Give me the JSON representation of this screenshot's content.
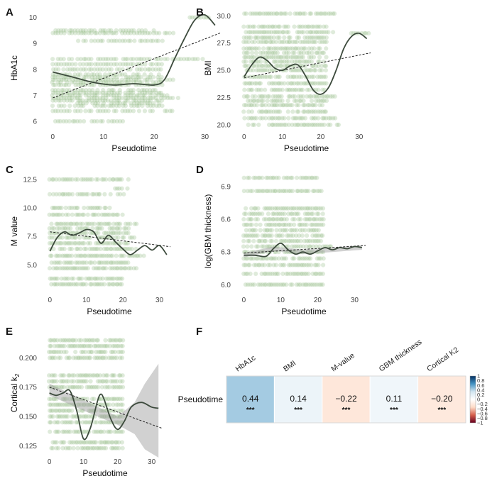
{
  "colors": {
    "point": "#8db87d",
    "smooth": "#3c4a3c",
    "linear": "#222222",
    "band": "#9a9a9a",
    "cmap": [
      "#67001f",
      "#d6604d",
      "#fddbc7",
      "#ffffff",
      "#d1e5f0",
      "#4393c3",
      "#053061"
    ]
  },
  "chart_data": [
    {
      "id": "A",
      "letter": "A",
      "type": "scatter",
      "title": "",
      "xlabel": "Pseudotime",
      "ylabel": "HbA1c",
      "xlim": [
        -2,
        33
      ],
      "ylim": [
        5.7,
        10.4
      ],
      "xticks": [
        0,
        10,
        20,
        30
      ],
      "xtick_labels": [
        "0",
        "10",
        "20",
        "30"
      ],
      "yticks": [
        6,
        7,
        8,
        9,
        10
      ],
      "ytick_labels": [
        "6",
        "7",
        "8",
        "9",
        "10"
      ],
      "point_levels": [
        [
          6.0,
          0,
          14
        ],
        [
          6.4,
          0,
          24
        ],
        [
          6.6,
          0,
          22
        ],
        [
          6.7,
          5,
          22
        ],
        [
          6.8,
          0,
          22
        ],
        [
          6.9,
          0,
          25
        ],
        [
          7.0,
          0,
          24
        ],
        [
          7.1,
          0,
          22
        ],
        [
          7.2,
          0,
          22
        ],
        [
          7.4,
          0,
          22
        ],
        [
          7.5,
          0,
          22
        ],
        [
          7.6,
          0,
          24
        ],
        [
          7.7,
          0,
          22
        ],
        [
          7.8,
          0,
          22
        ],
        [
          8.0,
          0,
          22
        ],
        [
          8.2,
          0,
          22
        ],
        [
          8.4,
          0,
          30
        ],
        [
          9.1,
          5,
          22
        ],
        [
          9.4,
          0,
          24
        ],
        [
          9.5,
          0,
          20
        ],
        [
          10.0,
          27,
          31
        ]
      ],
      "smooth": [
        [
          0,
          7.9
        ],
        [
          4,
          7.7
        ],
        [
          8,
          7.5
        ],
        [
          12,
          7.4
        ],
        [
          16,
          7.45
        ],
        [
          20,
          7.4
        ],
        [
          22,
          7.6
        ],
        [
          24,
          8.4
        ],
        [
          26,
          9.2
        ],
        [
          28,
          9.9
        ],
        [
          30,
          10.1
        ],
        [
          32,
          9.7
        ]
      ],
      "linear": [
        [
          0,
          6.9
        ],
        [
          33,
          9.4
        ]
      ],
      "band": null
    },
    {
      "id": "B",
      "letter": "B",
      "type": "scatter",
      "title": "",
      "xlabel": "Pseudotime",
      "ylabel": "BMI",
      "xlim": [
        -2,
        33
      ],
      "ylim": [
        19.6,
        30.8
      ],
      "xticks": [
        0,
        10,
        20,
        30
      ],
      "xtick_labels": [
        "0",
        "10",
        "20",
        "30"
      ],
      "yticks": [
        20.0,
        22.5,
        25.0,
        27.5,
        30.0
      ],
      "ytick_labels": [
        "20.0",
        "22.5",
        "25.0",
        "27.5",
        "30.0"
      ],
      "point_levels": [
        [
          20.0,
          0,
          25
        ],
        [
          20.6,
          0,
          24
        ],
        [
          21.2,
          0,
          22
        ],
        [
          21.8,
          0,
          22
        ],
        [
          22.2,
          0,
          22
        ],
        [
          22.6,
          0,
          24
        ],
        [
          23.2,
          0,
          22
        ],
        [
          23.8,
          0,
          22
        ],
        [
          24.4,
          0,
          22
        ],
        [
          25.0,
          0,
          22
        ],
        [
          25.4,
          0,
          22
        ],
        [
          25.8,
          0,
          22
        ],
        [
          26.2,
          0,
          22
        ],
        [
          26.6,
          0,
          22
        ],
        [
          27.0,
          0,
          22
        ],
        [
          27.6,
          0,
          22
        ],
        [
          28.0,
          0,
          22
        ],
        [
          28.5,
          0,
          24
        ],
        [
          28.4,
          28,
          33
        ],
        [
          29.0,
          0,
          22
        ],
        [
          30.2,
          0,
          24
        ]
      ],
      "smooth": [
        [
          0,
          24.4
        ],
        [
          2,
          25.5
        ],
        [
          4,
          26.2
        ],
        [
          6,
          25.9
        ],
        [
          8,
          25.2
        ],
        [
          10,
          25.0
        ],
        [
          12,
          25.4
        ],
        [
          14,
          25.5
        ],
        [
          16,
          24.5
        ],
        [
          18,
          23.2
        ],
        [
          20,
          22.8
        ],
        [
          22,
          23.4
        ],
        [
          24,
          25.0
        ],
        [
          26,
          27.0
        ],
        [
          28,
          28.1
        ],
        [
          30,
          28.4
        ],
        [
          32,
          27.9
        ]
      ],
      "linear": [
        [
          0,
          24.3
        ],
        [
          33,
          26.6
        ]
      ],
      "band": null
    },
    {
      "id": "C",
      "letter": "C",
      "type": "scatter",
      "title": "",
      "xlabel": "Pseudotime",
      "ylabel": "M value",
      "xlim": [
        -2,
        33
      ],
      "ylim": [
        2.6,
        13.3
      ],
      "xticks": [
        0,
        10,
        20,
        30
      ],
      "xtick_labels": [
        "0",
        "10",
        "20",
        "30"
      ],
      "yticks": [
        5.0,
        7.5,
        10.0,
        12.5
      ],
      "ytick_labels": [
        "5.0",
        "7.5",
        "10.0",
        "12.5"
      ],
      "point_levels": [
        [
          3.3,
          0,
          20
        ],
        [
          3.8,
          0,
          20
        ],
        [
          4.7,
          0,
          24
        ],
        [
          5.2,
          0,
          22
        ],
        [
          5.8,
          0,
          26
        ],
        [
          6.4,
          0,
          24
        ],
        [
          6.9,
          0,
          22
        ],
        [
          7.4,
          0,
          24
        ],
        [
          7.8,
          0,
          22
        ],
        [
          8.2,
          0,
          22
        ],
        [
          8.6,
          0,
          24
        ],
        [
          9.4,
          0,
          20
        ],
        [
          10.0,
          0,
          18
        ],
        [
          11.2,
          0,
          22
        ],
        [
          11.7,
          18,
          22
        ],
        [
          12.5,
          0,
          22
        ]
      ],
      "smooth": [
        [
          0,
          6.2
        ],
        [
          2,
          7.4
        ],
        [
          4,
          7.9
        ],
        [
          6,
          7.6
        ],
        [
          8,
          7.8
        ],
        [
          10,
          8.1
        ],
        [
          12,
          7.9
        ],
        [
          14,
          6.9
        ],
        [
          16,
          7.6
        ],
        [
          18,
          7.0
        ],
        [
          20,
          6.4
        ],
        [
          22,
          5.9
        ],
        [
          24,
          6.3
        ],
        [
          26,
          6.7
        ],
        [
          28,
          6.3
        ],
        [
          30,
          6.7
        ],
        [
          32,
          5.9
        ]
      ],
      "linear": [
        [
          0,
          7.9
        ],
        [
          33,
          6.6
        ]
      ],
      "band": null
    },
    {
      "id": "D",
      "letter": "D",
      "type": "scatter",
      "title": "",
      "xlabel": "Pseudotime",
      "ylabel": "log(GBM thickness)",
      "xlim": [
        -2,
        33
      ],
      "ylim": [
        5.93,
        7.05
      ],
      "xticks": [
        0,
        10,
        20,
        30
      ],
      "xtick_labels": [
        "0",
        "10",
        "20",
        "30"
      ],
      "yticks": [
        6.0,
        6.3,
        6.6,
        6.9
      ],
      "ytick_labels": [
        "6.0",
        "6.3",
        "6.6",
        "6.9"
      ],
      "point_levels": [
        [
          6.0,
          0,
          22
        ],
        [
          6.1,
          0,
          22
        ],
        [
          6.18,
          0,
          22
        ],
        [
          6.24,
          0,
          22
        ],
        [
          6.3,
          0,
          22
        ],
        [
          6.35,
          0,
          24
        ],
        [
          6.4,
          0,
          22
        ],
        [
          6.45,
          0,
          22
        ],
        [
          6.5,
          0,
          22
        ],
        [
          6.55,
          0,
          22
        ],
        [
          6.6,
          0,
          22
        ],
        [
          6.65,
          0,
          22
        ],
        [
          6.7,
          0,
          22
        ],
        [
          6.86,
          0,
          22
        ],
        [
          6.98,
          0,
          20
        ]
      ],
      "smooth": [
        [
          0,
          6.27
        ],
        [
          3,
          6.27
        ],
        [
          6,
          6.26
        ],
        [
          8,
          6.33
        ],
        [
          10,
          6.38
        ],
        [
          12,
          6.32
        ],
        [
          14,
          6.28
        ],
        [
          16,
          6.3
        ],
        [
          18,
          6.28
        ],
        [
          20,
          6.31
        ],
        [
          22,
          6.34
        ],
        [
          24,
          6.32
        ],
        [
          26,
          6.34
        ],
        [
          28,
          6.33
        ],
        [
          30,
          6.35
        ],
        [
          32,
          6.34
        ]
      ],
      "linear": [
        [
          0,
          6.29
        ],
        [
          33,
          6.36
        ]
      ],
      "band": [
        [
          0,
          6.25,
          6.29
        ],
        [
          8,
          6.31,
          6.35
        ],
        [
          16,
          6.28,
          6.32
        ],
        [
          24,
          6.3,
          6.34
        ],
        [
          32,
          6.32,
          6.36
        ]
      ]
    },
    {
      "id": "E",
      "letter": "E",
      "type": "scatter",
      "title": "",
      "xlabel": "Pseudotime",
      "ylabel": "Cortical k",
      "ylabel_sub": "2",
      "xlim": [
        -2,
        33
      ],
      "ylim": [
        0.118,
        0.222
      ],
      "xticks": [
        0,
        10,
        20,
        30
      ],
      "xtick_labels": [
        "0",
        "10",
        "20",
        "30"
      ],
      "yticks": [
        0.125,
        0.15,
        0.175,
        0.2
      ],
      "ytick_labels": [
        "0.125",
        "0.150",
        "0.175",
        "0.200"
      ],
      "point_levels": [
        [
          0.123,
          0,
          22
        ],
        [
          0.128,
          0,
          22
        ],
        [
          0.137,
          0,
          22
        ],
        [
          0.145,
          0,
          22
        ],
        [
          0.15,
          0,
          22
        ],
        [
          0.155,
          0,
          22
        ],
        [
          0.16,
          0,
          22
        ],
        [
          0.165,
          0,
          22
        ],
        [
          0.175,
          0,
          22
        ],
        [
          0.18,
          0,
          22
        ],
        [
          0.185,
          0,
          22
        ],
        [
          0.2,
          0,
          22
        ],
        [
          0.205,
          0,
          22
        ],
        [
          0.21,
          0,
          22
        ],
        [
          0.215,
          0,
          22
        ]
      ],
      "smooth": [
        [
          0,
          0.17
        ],
        [
          2,
          0.168
        ],
        [
          4,
          0.17
        ],
        [
          6,
          0.172
        ],
        [
          8,
          0.155
        ],
        [
          10,
          0.131
        ],
        [
          12,
          0.14
        ],
        [
          14,
          0.162
        ],
        [
          15,
          0.169
        ],
        [
          16,
          0.165
        ],
        [
          18,
          0.148
        ],
        [
          20,
          0.139
        ],
        [
          22,
          0.146
        ],
        [
          24,
          0.158
        ],
        [
          27,
          0.162
        ],
        [
          30,
          0.158
        ],
        [
          32,
          0.157
        ]
      ],
      "linear": [
        [
          0,
          0.175
        ],
        [
          33,
          0.14
        ]
      ],
      "band": [
        [
          0,
          0.168,
          0.178
        ],
        [
          10,
          0.155,
          0.164
        ],
        [
          20,
          0.143,
          0.15
        ],
        [
          25,
          0.135,
          0.162
        ],
        [
          28,
          0.122,
          0.178
        ],
        [
          32,
          0.115,
          0.195
        ]
      ]
    },
    {
      "id": "F",
      "letter": "F",
      "type": "heatmap",
      "title": "",
      "row_label": "Pseudotime",
      "columns": [
        "HbA1c",
        "BMI",
        "M-value",
        "GBM thickness",
        "Cortical K2"
      ],
      "values": [
        0.44,
        0.14,
        -0.22,
        0.11,
        -0.2
      ],
      "value_labels": [
        "0.44",
        "0.14",
        "−0.22",
        "0.11",
        "−0.20"
      ],
      "significance": [
        "***",
        "***",
        "***",
        "***",
        "***"
      ],
      "colorbar_range": [
        -1,
        1
      ],
      "colorbar_ticks": [
        1,
        0.8,
        0.6,
        0.4,
        0.2,
        0,
        -0.2,
        -0.4,
        -0.6,
        -0.8,
        -1
      ],
      "colorbar_tick_labels": [
        "1",
        "0.8",
        "0.6",
        "0.4",
        "0.2",
        "0",
        "−0.2",
        "−0.4",
        "−0.6",
        "−0.8",
        "−1"
      ]
    }
  ]
}
